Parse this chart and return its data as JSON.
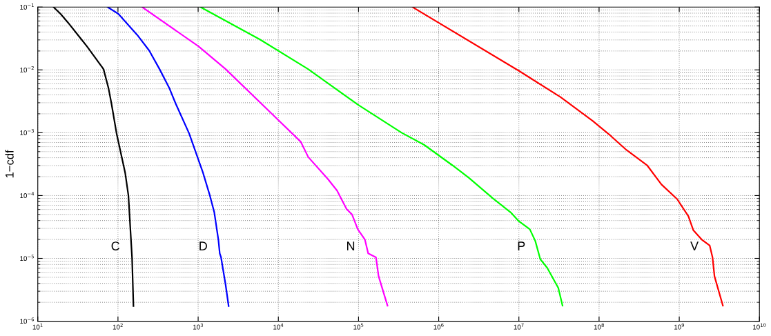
{
  "chart_data": {
    "type": "line",
    "ylabel": "1−cdf",
    "log": "xy",
    "grid": true,
    "line_style": "solid",
    "marker": "none",
    "xlim": [
      10,
      10000000000
    ],
    "ylim": [
      1e-06,
      0.1
    ],
    "xticks": [
      {
        "value": 10,
        "label": "10$^{1}$"
      },
      {
        "value": 100,
        "label": "10$^{2}$"
      },
      {
        "value": 1000,
        "label": "10$^{3}$"
      },
      {
        "value": 10000,
        "label": "10$^{4}$"
      },
      {
        "value": 100000,
        "label": "10$^{5}$"
      },
      {
        "value": 1000000,
        "label": "10$^{6}$"
      },
      {
        "value": 10000000,
        "label": "10$^{7}$"
      },
      {
        "value": 100000000,
        "label": "10$^{8}$"
      },
      {
        "value": 1000000000,
        "label": "10$^{9}$"
      },
      {
        "value": 10000000000,
        "label": "10$^{10}$"
      }
    ],
    "yticks": [
      {
        "value": 1e-06,
        "label": "10$^{−6}$"
      },
      {
        "value": 1e-05,
        "label": "10$^{−5}$"
      },
      {
        "value": 0.0001,
        "label": "10$^{−4}$"
      },
      {
        "value": 0.001,
        "label": "10$^{−3}$"
      },
      {
        "value": 0.01,
        "label": "10$^{−2}$"
      },
      {
        "value": 0.1,
        "label": "10$^{−1}$"
      }
    ],
    "series": [
      {
        "name": "C",
        "color": "#000000",
        "x": [
          15.7,
          19.2,
          24,
          34,
          41,
          66,
          76,
          83,
          96,
          123,
          135,
          150,
          156
        ],
        "values": [
          0.1,
          0.078,
          0.056,
          0.032,
          0.0237,
          0.0103,
          0.0052,
          0.0029,
          0.00098,
          0.00023,
          0.0001,
          1e-05,
          1.74e-06
        ]
      },
      {
        "name": "D",
        "color": "#0000ff",
        "x": [
          74,
          101,
          174,
          245,
          330,
          435,
          525,
          770,
          1150,
          1400,
          1590,
          1790,
          1860,
          1930,
          2200,
          2400
        ],
        "values": [
          0.1,
          0.078,
          0.036,
          0.0203,
          0.0103,
          0.0052,
          0.0029,
          0.00098,
          0.00023,
          0.0001,
          5.4e-05,
          1.96e-05,
          1.2e-05,
          1.04e-05,
          3.8e-06,
          1.74e-06
        ]
      },
      {
        "name": "N",
        "color": "#ff00ff",
        "x": [
          200,
          1010,
          2200,
          8700,
          19000,
          23600,
          42000,
          54000,
          71000,
          83000,
          98000,
          120000,
          132000,
          165000,
          178000,
          230000
        ],
        "values": [
          0.1,
          0.0237,
          0.0103,
          0.00189,
          0.00072,
          0.00041,
          0.00018,
          0.00012,
          6.1e-05,
          5e-05,
          2.9e-05,
          2e-05,
          1.2e-05,
          1.04e-05,
          5.2e-06,
          1.77e-06
        ]
      },
      {
        "name": "P",
        "color": "#00ff00",
        "x": [
          1070,
          5900,
          23500,
          98000,
          345000,
          660000,
          1500000,
          2400000,
          4700000,
          7900000,
          10000000,
          13700000,
          16000000,
          18500000,
          22500000,
          31000000,
          35000000
        ],
        "values": [
          0.1,
          0.0305,
          0.0103,
          0.0028,
          0.001,
          0.00064,
          0.0003,
          0.00019,
          9.1e-05,
          5.4e-05,
          3.9e-05,
          2.9e-05,
          1.9e-05,
          9.7e-06,
          7.1e-06,
          3.4e-06,
          1.77e-06
        ]
      },
      {
        "name": "V",
        "color": "#ff0000",
        "x": [
          470000,
          10200000,
          33000000,
          83000000,
          140000000,
          220000000,
          400000000,
          600000000,
          940000000,
          1300000000,
          1500000000,
          1900000000,
          2400000000,
          2600000000,
          2750000000,
          3500000000
        ],
        "values": [
          0.1,
          0.0095,
          0.0037,
          0.00155,
          0.00089,
          0.00053,
          0.0003,
          0.00015,
          8.8e-05,
          4.7e-05,
          2.8e-05,
          2e-05,
          1.6e-05,
          1.04e-05,
          5.2e-06,
          1.77e-06
        ]
      }
    ]
  }
}
